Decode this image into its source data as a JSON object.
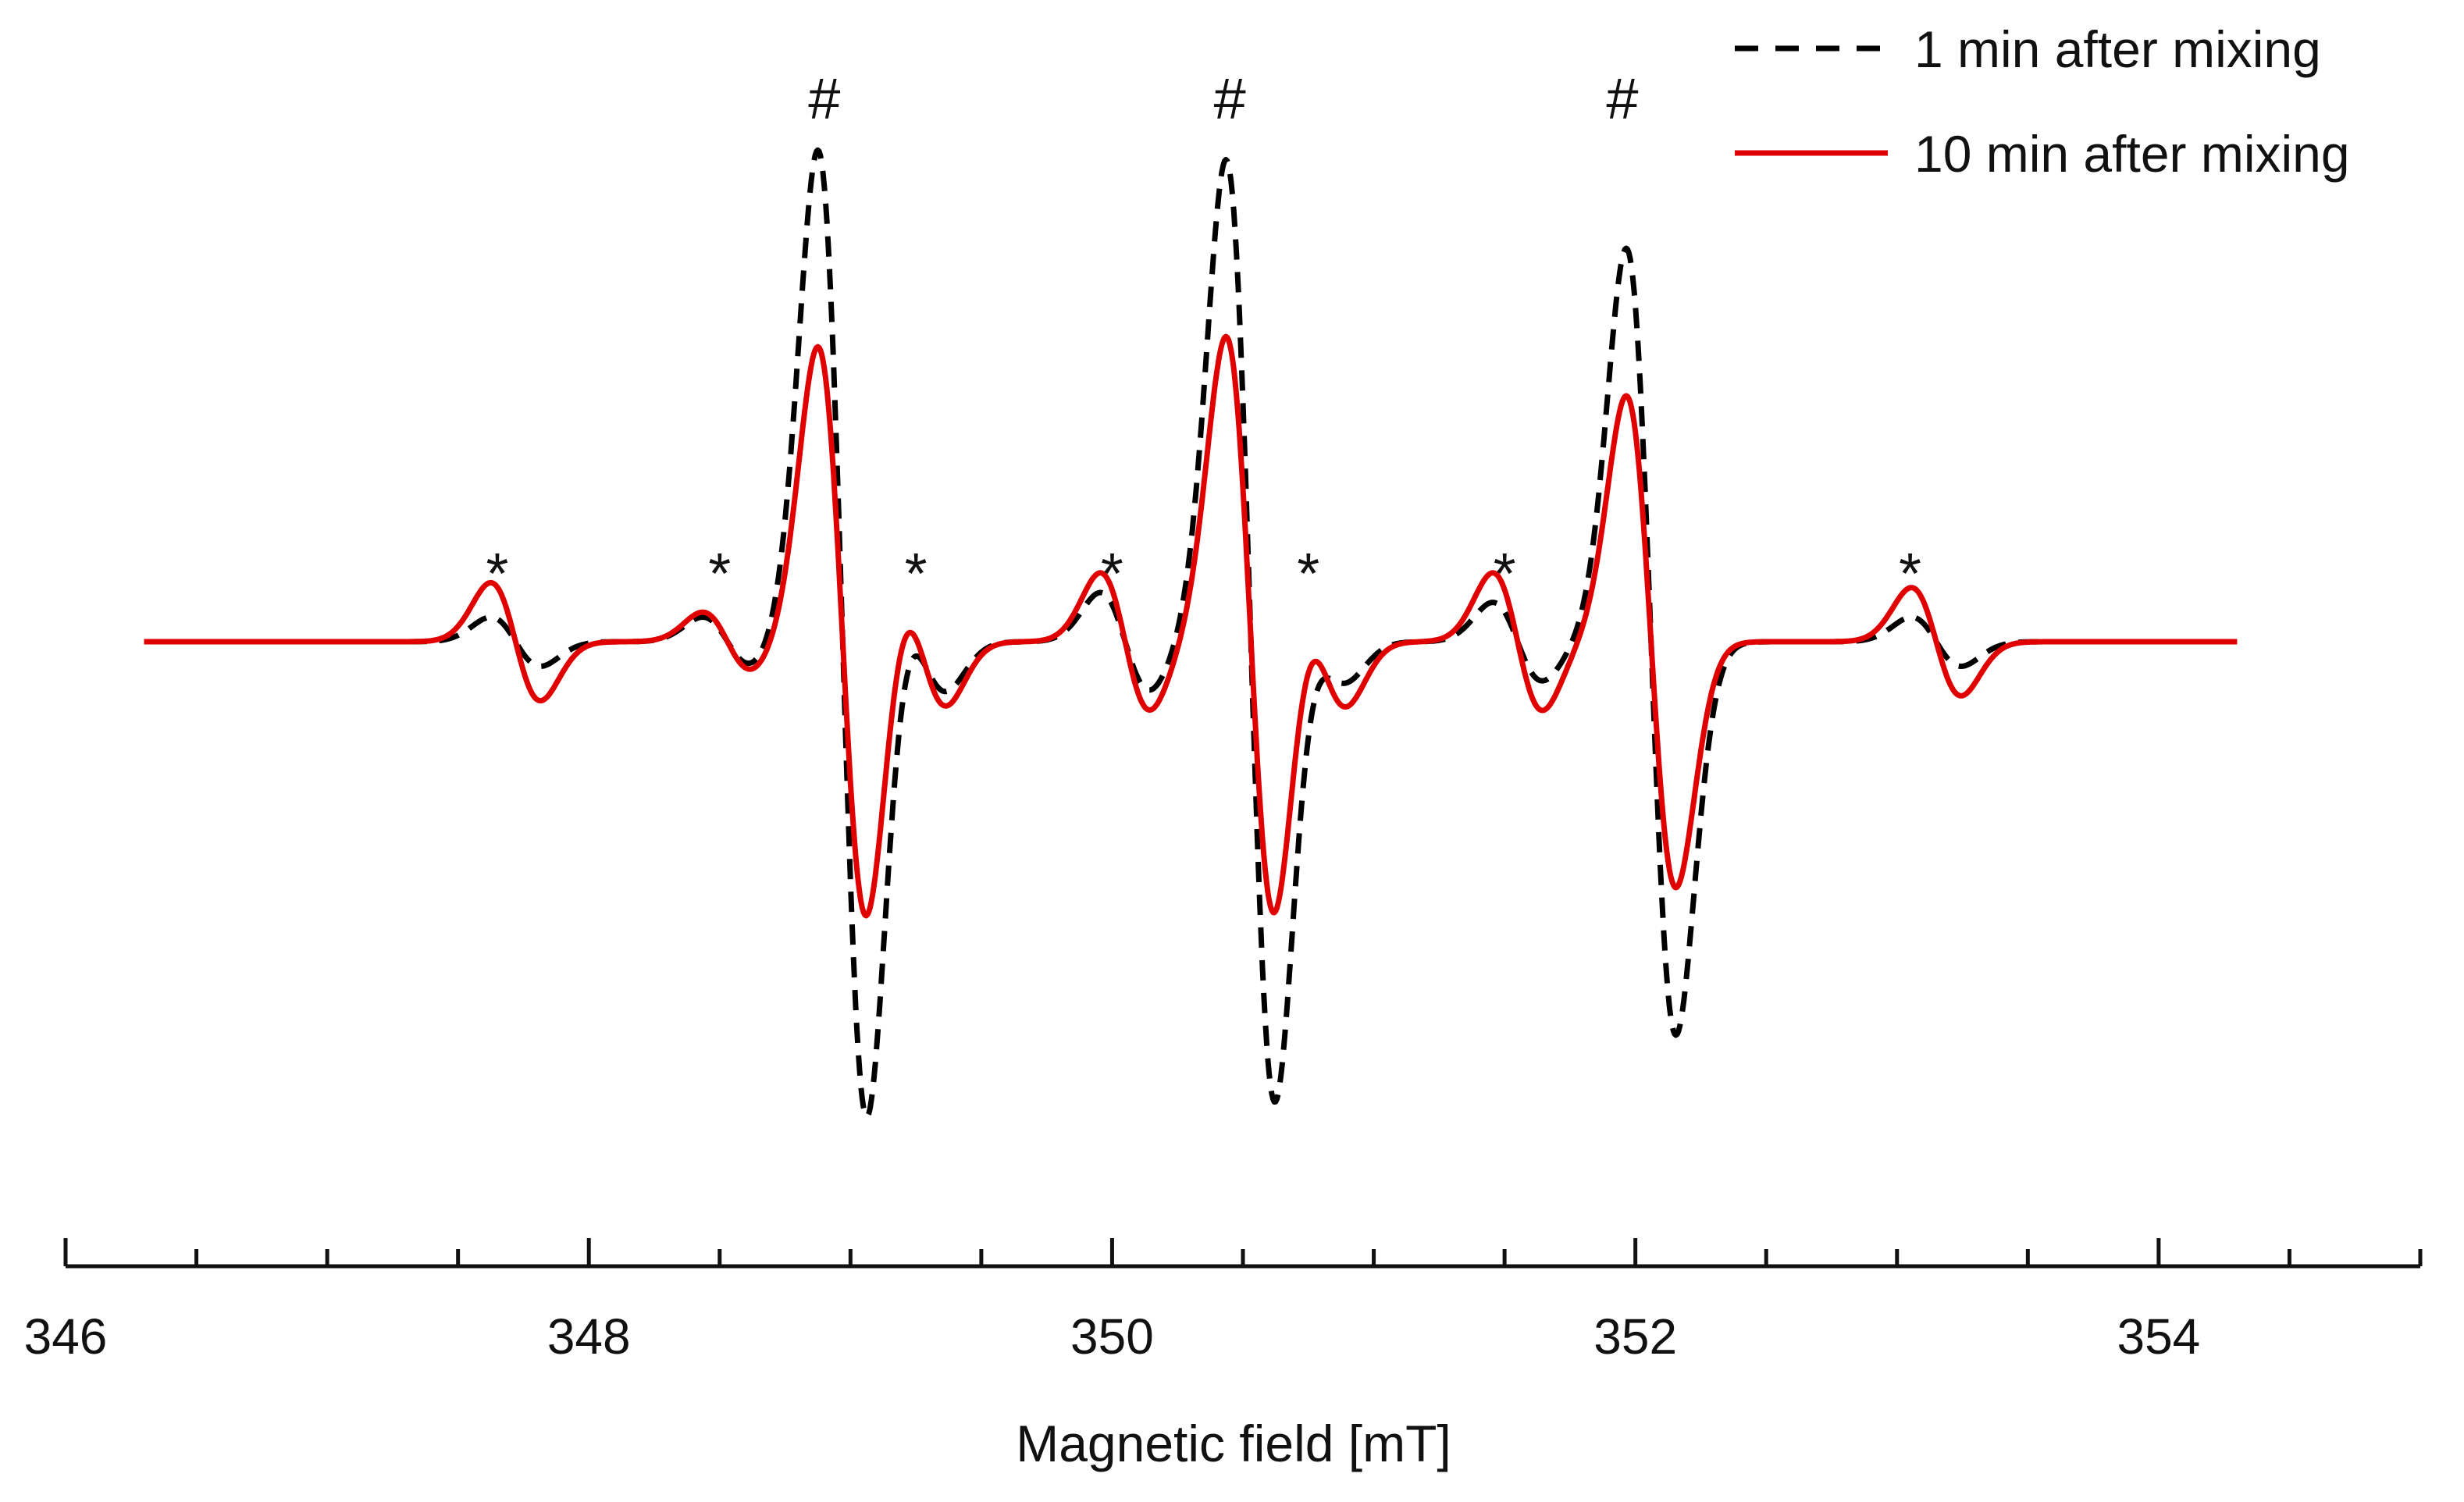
{
  "chart_data": {
    "type": "line",
    "title": "",
    "xlabel": "Magnetic field [mT]",
    "ylabel": "",
    "xlim": [
      346,
      355
    ],
    "ylim": [
      -1.3,
      1.25
    ],
    "xticks_major": [
      346,
      348,
      350,
      352,
      354
    ],
    "xticks_minor": [
      346.5,
      347,
      347.5,
      348.5,
      349,
      349.5,
      350.5,
      351,
      351.5,
      352.5,
      353,
      353.5,
      354.5,
      355
    ],
    "grid": false,
    "legend_position": "top-right",
    "series": [
      {
        "name": "1 min after mixing",
        "color": "#000000",
        "dash": "dashed",
        "x_range": [
          346.3,
          354.3
        ],
        "baseline_level": 0,
        "components": [
          {
            "center": 347.72,
            "amplitude": 0.05
          },
          {
            "center": 348.53,
            "amplitude": 0.05
          },
          {
            "center": 348.97,
            "amplitude": 1.0
          },
          {
            "center": 349.27,
            "amplitude": 0.1
          },
          {
            "center": 350.05,
            "amplitude": 0.1
          },
          {
            "center": 350.53,
            "amplitude": 0.98
          },
          {
            "center": 350.8,
            "amplitude": 0.08
          },
          {
            "center": 351.55,
            "amplitude": 0.08
          },
          {
            "center": 352.06,
            "amplitude": 0.8
          },
          {
            "center": 353.15,
            "amplitude": 0.05
          }
        ]
      },
      {
        "name": "10 min after mixing",
        "color": "#e00000",
        "dash": "solid",
        "x_range": [
          346.3,
          354.3
        ],
        "baseline_level": 0,
        "components": [
          {
            "center": 347.72,
            "amplitude": 0.12
          },
          {
            "center": 348.53,
            "amplitude": 0.06
          },
          {
            "center": 348.97,
            "amplitude": 0.6
          },
          {
            "center": 349.27,
            "amplitude": 0.13
          },
          {
            "center": 350.05,
            "amplitude": 0.14
          },
          {
            "center": 350.53,
            "amplitude": 0.62
          },
          {
            "center": 350.8,
            "amplitude": 0.13
          },
          {
            "center": 351.55,
            "amplitude": 0.14
          },
          {
            "center": 352.06,
            "amplitude": 0.5
          },
          {
            "center": 353.15,
            "amplitude": 0.11
          }
        ]
      }
    ],
    "annotations": [
      {
        "text": "#",
        "x": 348.9,
        "y": 1.05
      },
      {
        "text": "#",
        "x": 350.45,
        "y": 1.05
      },
      {
        "text": "#",
        "x": 351.95,
        "y": 1.05
      },
      {
        "text": "*",
        "x": 347.65,
        "y": 0.1
      },
      {
        "text": "*",
        "x": 348.5,
        "y": 0.1
      },
      {
        "text": "*",
        "x": 349.25,
        "y": 0.1
      },
      {
        "text": "*",
        "x": 350.0,
        "y": 0.1
      },
      {
        "text": "*",
        "x": 350.75,
        "y": 0.1
      },
      {
        "text": "*",
        "x": 351.5,
        "y": 0.1
      },
      {
        "text": "*",
        "x": 353.05,
        "y": 0.1
      }
    ]
  }
}
